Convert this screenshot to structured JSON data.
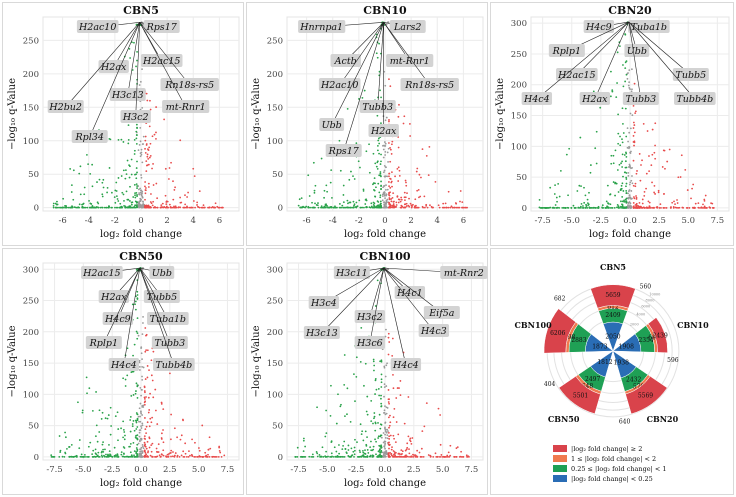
{
  "chart_data": [
    {
      "type": "scatter",
      "title": "CBN5",
      "xlabel": "log₂ fold change",
      "ylabel": "−log₁₀ q-Value",
      "xlim": [
        -7.5,
        7.5
      ],
      "ylim": [
        -5,
        285
      ],
      "xticks": [
        -6,
        -4,
        -2,
        0,
        2,
        4,
        6
      ],
      "yticks": [
        0,
        50,
        100,
        150,
        200,
        250
      ],
      "genes": [
        "H2ac10",
        "Rps17",
        "H2ax",
        "H2ac15",
        "Rn18s-rs5",
        "H2bu2",
        "H3c13",
        "mt-Rnr1",
        "H3c2",
        "Rpl34"
      ]
    },
    {
      "type": "scatter",
      "title": "CBN10",
      "xlabel": "log₂ fold change",
      "ylabel": "−log₁₀ q-Value",
      "xlim": [
        -7.5,
        7.5
      ],
      "ylim": [
        -5,
        285
      ],
      "xticks": [
        -6,
        -4,
        -2,
        0,
        2,
        4,
        6
      ],
      "yticks": [
        0,
        50,
        100,
        150,
        200,
        250
      ],
      "genes": [
        "Hnrnpa1",
        "Lars2",
        "Actb",
        "mt-Rnr1",
        "H2ac10",
        "Rn18s-rs5",
        "Tubb3",
        "Ubb",
        "H2ax",
        "Rps17"
      ]
    },
    {
      "type": "scatter",
      "title": "CBN20",
      "xlabel": "log₂ fold change",
      "ylabel": "−log₁₀ q-Value",
      "xlim": [
        -8.5,
        8.5
      ],
      "ylim": [
        -5,
        310
      ],
      "xticks": [
        -7.5,
        -5.0,
        -2.5,
        0.0,
        2.5,
        5.0,
        7.5
      ],
      "yticks": [
        0,
        50,
        100,
        150,
        200,
        250,
        300
      ],
      "genes": [
        "H4c9",
        "Tuba1b",
        "Rplp1",
        "Ubb",
        "H2ac15",
        "Tubb5",
        "H4c4",
        "H2ax",
        "Tubb3",
        "Tubb4b"
      ]
    },
    {
      "type": "scatter",
      "title": "CBN50",
      "xlabel": "log₂ fold change",
      "ylabel": "−log₁₀ q-Value",
      "xlim": [
        -8.5,
        8.5
      ],
      "ylim": [
        -5,
        310
      ],
      "xticks": [
        -7.5,
        -5.0,
        -2.5,
        0.0,
        2.5,
        5.0,
        7.5
      ],
      "yticks": [
        0,
        50,
        100,
        150,
        200,
        250,
        300
      ],
      "genes": [
        "H2ac15",
        "Ubb",
        "H2ax",
        "Tubb5",
        "H4c9",
        "Tuba1b",
        "Rplp1",
        "Tubb3",
        "H4c4",
        "Tubb4b"
      ]
    },
    {
      "type": "scatter",
      "title": "CBN100",
      "xlabel": "log₂ fold change",
      "ylabel": "−log₁₀ q-Value",
      "xlim": [
        -8.5,
        8.5
      ],
      "ylim": [
        -5,
        310
      ],
      "xticks": [
        -7.5,
        -5.0,
        -2.5,
        0.0,
        2.5,
        5.0,
        7.5
      ],
      "yticks": [
        0,
        50,
        100,
        150,
        200,
        250,
        300
      ],
      "genes": [
        "H3c11",
        "mt-Rnr2",
        "H3c4",
        "H4c1",
        "Eif5a",
        "H3c2",
        "H3c13",
        "H3c6",
        "H4c3",
        "H4c4"
      ]
    },
    {
      "type": "bar",
      "subtype": "polar-stacked",
      "categories": [
        "CBN5",
        "CBN10",
        "CBN20",
        "CBN50",
        "CBN100"
      ],
      "series": [
        {
          "name": "|log₂ fold change| ≥ 2",
          "color": "#d9434b",
          "values": [
            5659,
            2439,
            5569,
            5501,
            6206
          ]
        },
        {
          "name": "1 ≤ |log₂ fold change| < 2",
          "color": "#f07a4f",
          "values": [
            612,
            601,
            579,
            648,
            698
          ]
        },
        {
          "name": "0.25 ≤ |log₂ fold change| < 1",
          "color": "#1fa055",
          "values": [
            2409,
            2354,
            2432,
            2497,
            2883
          ]
        },
        {
          "name": "|log₂ fold change| < 0.25",
          "color": "#2a6db5",
          "values": [
            2050,
            1908,
            1938,
            1812,
            1873
          ]
        }
      ],
      "outer_labels": [
        560,
        596,
        640,
        404,
        682
      ],
      "radial_ticks": [
        2000,
        4000,
        6000,
        8000,
        10000
      ]
    }
  ],
  "colors": {
    "up": "#e84b4b",
    "down": "#2aa24a",
    "ns": "#9a9a9a",
    "label_bg": "#d3d3d3"
  }
}
